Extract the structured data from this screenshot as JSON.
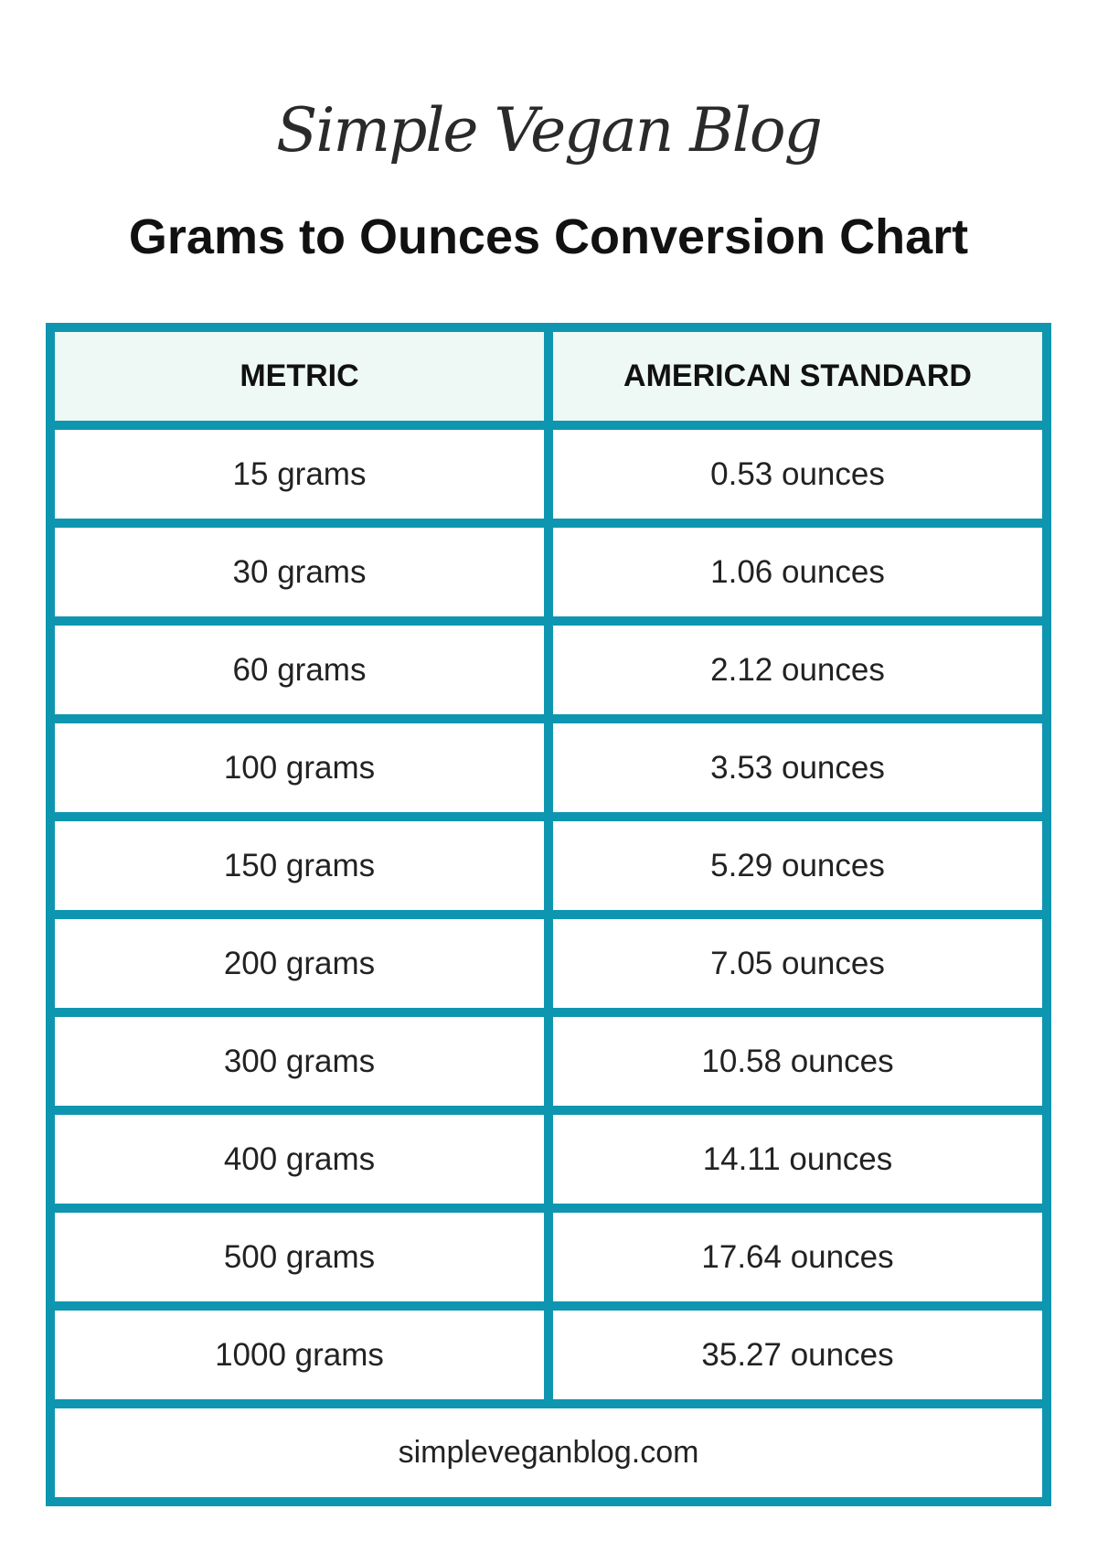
{
  "logo": {
    "text": "Simple Vegan Blog"
  },
  "title": "Grams to Ounces Conversion Chart",
  "table": {
    "headers": [
      "METRIC",
      "AMERICAN STANDARD"
    ],
    "rows": [
      [
        "15 grams",
        "0.53 ounces"
      ],
      [
        "30 grams",
        "1.06 ounces"
      ],
      [
        "60 grams",
        "2.12 ounces"
      ],
      [
        "100 grams",
        "3.53 ounces"
      ],
      [
        "150 grams",
        "5.29 ounces"
      ],
      [
        "200 grams",
        "7.05 ounces"
      ],
      [
        "300 grams",
        "10.58 ounces"
      ],
      [
        "400 grams",
        "14.11 ounces"
      ],
      [
        "500 grams",
        "17.64 ounces"
      ],
      [
        "1000 grams",
        "35.27 ounces"
      ]
    ],
    "footer": "simpleveganblog.com"
  },
  "colors": {
    "border": "#0e96b0",
    "header_bg": "#eef8f5"
  }
}
